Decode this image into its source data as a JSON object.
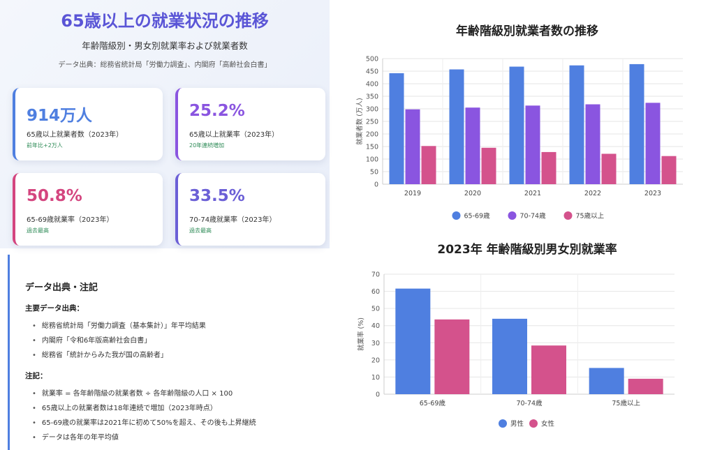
{
  "hero": {
    "title": "65歳以上の就業状況の推移",
    "subtitle": "年齢階級別・男女別就業率および就業者数",
    "source": "データ出典：総務省統計局「労働力調査」、内閣府「高齢社会白書」"
  },
  "cards": [
    {
      "value": "914万人",
      "label": "65歳以上就業者数（2023年）",
      "note": "前年比+2万人",
      "color": "#4f7fe0"
    },
    {
      "value": "25.2%",
      "label": "65歳以上就業率（2023年）",
      "note": "20年連続増加",
      "color": "#8a55e0"
    },
    {
      "value": "50.8%",
      "label": "65-69歳就業率（2023年）",
      "note": "過去最高",
      "color": "#d4457f"
    },
    {
      "value": "33.5%",
      "label": "70-74歳就業率（2023年）",
      "note": "過去最高",
      "color": "#6b5fd6"
    }
  ],
  "notes": {
    "title": "データ出典・注記",
    "sources_heading": "主要データ出典：",
    "sources": [
      "総務省統計局「労働力調査（基本集計）」年平均結果",
      "内閣府「令和6年版高齢社会白書」",
      "総務省「統計からみた我が国の高齢者」"
    ],
    "notes_heading": "注記：",
    "notes": [
      "就業率 = 各年齢階級の就業者数 ÷ 各年齢階級の人口 × 100",
      "65歳以上の就業者数は18年連続で増加（2023年時点）",
      "65-69歳の就業率は2021年に初めて50%を超え、その後も上昇継続",
      "データは各年の年平均値"
    ]
  },
  "chart_data": [
    {
      "type": "bar",
      "title": "年齢階級別就業者数の推移",
      "xlabel": "",
      "ylabel": "就業者数 (万人)",
      "ylim": [
        0,
        500
      ],
      "yticks": [
        0,
        50,
        100,
        150,
        200,
        250,
        300,
        350,
        400,
        450,
        500
      ],
      "categories": [
        "2019",
        "2020",
        "2021",
        "2022",
        "2023"
      ],
      "series": [
        {
          "name": "65-69歳",
          "color": "#4f7fe0",
          "values": [
            442,
            457,
            468,
            473,
            478
          ]
        },
        {
          "name": "70-74歳",
          "color": "#8a55e0",
          "values": [
            298,
            305,
            313,
            318,
            324
          ]
        },
        {
          "name": "75歳以上",
          "color": "#d4528c",
          "values": [
            152,
            145,
            128,
            121,
            112
          ]
        }
      ],
      "legend": "bottom",
      "grid": true
    },
    {
      "type": "bar",
      "title": "2023年 年齢階級別男女別就業率",
      "xlabel": "",
      "ylabel": "就業率 (%)",
      "ylim": [
        0,
        70
      ],
      "yticks": [
        0,
        10,
        20,
        30,
        40,
        50,
        60,
        70
      ],
      "categories": [
        "65-69歳",
        "70-74歳",
        "75歳以上"
      ],
      "series": [
        {
          "name": "男性",
          "color": "#4f7fe0",
          "values": [
            61.6,
            44.0,
            15.3
          ]
        },
        {
          "name": "女性",
          "color": "#d4528c",
          "values": [
            43.6,
            28.4,
            9.0
          ]
        }
      ],
      "legend": "bottom",
      "grid": true
    }
  ]
}
